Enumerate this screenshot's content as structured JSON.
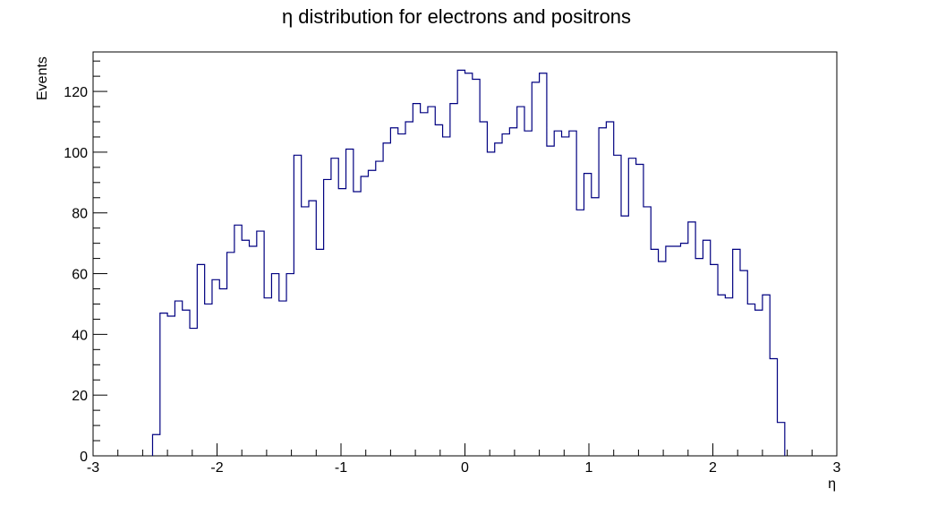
{
  "chart_data": {
    "type": "histogram",
    "title": "η distribution for electrons and positrons",
    "xlabel": "η",
    "ylabel": "Events",
    "xlim": [
      -3,
      3
    ],
    "ylim": [
      0,
      133
    ],
    "xticks": [
      -3,
      -2,
      -1,
      0,
      1,
      2,
      3
    ],
    "yticks": [
      0,
      20,
      40,
      60,
      80,
      100,
      120
    ],
    "bin_width": 0.06,
    "bin_start": -2.52,
    "bin_values": [
      7,
      47,
      46,
      51,
      48,
      42,
      63,
      50,
      58,
      55,
      67,
      76,
      71,
      69,
      74,
      52,
      60,
      51,
      60,
      99,
      82,
      84,
      68,
      91,
      98,
      88,
      101,
      87,
      92,
      94,
      97,
      103,
      108,
      106,
      110,
      116,
      113,
      115,
      109,
      105,
      116,
      127,
      126,
      124,
      110,
      100,
      103,
      106,
      108,
      115,
      107,
      123,
      126,
      102,
      107,
      105,
      107,
      81,
      93,
      85,
      108,
      110,
      99,
      79,
      98,
      96,
      82,
      68,
      64,
      69,
      69,
      70,
      77,
      65,
      71,
      63,
      53,
      52,
      68,
      61,
      50,
      48,
      53,
      32,
      11
    ],
    "grid": false,
    "colors": {
      "line": "#000080",
      "frame": "#000000"
    }
  }
}
